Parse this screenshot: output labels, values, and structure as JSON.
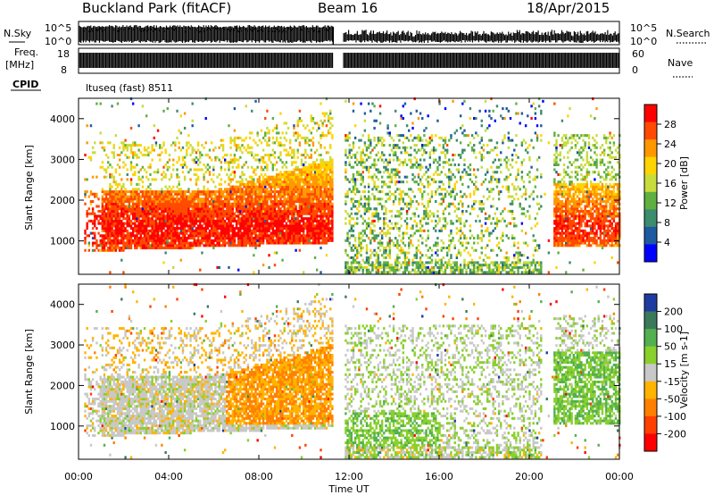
{
  "header": {
    "site": "Buckland Park (fitACF)",
    "beam": "Beam 16",
    "date": "18/Apr/2015"
  },
  "top_panels": {
    "nsky_label": "N.Sky",
    "nsky_ticks": [
      "10^5",
      "10^0"
    ],
    "nsearch_label": "N.Search",
    "nsearch_ticks": [
      "10^5",
      "10^0"
    ],
    "freq_label": "Freq.",
    "freq_unit": "[MHz]",
    "freq_ticks": [
      "18",
      "8"
    ],
    "nave_label": "Nave",
    "nave_ticks": [
      "60",
      "0"
    ],
    "cpid_label": "CPID",
    "cpid_value": "ltuseq (fast) 8511"
  },
  "chart_data": [
    {
      "type": "heatmap",
      "name": "power",
      "ylabel": "Slant Range [km]",
      "yticks": [
        "1000",
        "2000",
        "3000",
        "4000"
      ],
      "ylim": [
        180,
        4500
      ],
      "xlim": [
        0,
        24
      ],
      "data_gap_hours": [
        11.3,
        11.75
      ],
      "colorbar_label": "Power [dB]",
      "colorbar_ticks": [
        "28",
        "24",
        "20",
        "16",
        "12",
        "8",
        "4"
      ],
      "colorbar_colors": [
        "#ff0000",
        "#ff4a00",
        "#ff9800",
        "#ffd400",
        "#c8dc3c",
        "#5fb040",
        "#3c8c6e",
        "#1e5aa0",
        "#0000ff"
      ],
      "colorbar_range": [
        0,
        32
      ],
      "regions": [
        {
          "t0": 0.2,
          "t1": 11.3,
          "r0": 900,
          "r1": 2100,
          "values": "high (20-30 dB)"
        },
        {
          "t0": 21.0,
          "t1": 24.0,
          "r0": 800,
          "r1": 2200,
          "values": "high (18-30 dB)"
        },
        {
          "t0": 11.75,
          "t1": 20.5,
          "r0": 200,
          "r1": 3500,
          "values": "low-medium (4-20 dB)"
        }
      ]
    },
    {
      "type": "heatmap",
      "name": "velocity",
      "ylabel": "Slant Range [km]",
      "yticks": [
        "1000",
        "2000",
        "3000",
        "4000"
      ],
      "ylim": [
        180,
        4500
      ],
      "xlim": [
        0,
        24
      ],
      "data_gap_hours": [
        11.3,
        11.75
      ],
      "colorbar_label": "Velocity [m s-1]",
      "colorbar_ticks": [
        "200",
        "100",
        "50",
        "15",
        "-15",
        "-50",
        "-100",
        "-200"
      ],
      "colorbar_colors": [
        "#1e3ca0",
        "#3a7a5a",
        "#52b050",
        "#8ad02c",
        "#c8c8c8",
        "#ffb400",
        "#ff8000",
        "#ff4000",
        "#ff0000"
      ],
      "colorbar_range": [
        -250,
        250
      ],
      "regions": [
        {
          "t0": 0.2,
          "t1": 6.5,
          "r0": 900,
          "r1": 2000,
          "values": "near zero (ground scatter, grey)"
        },
        {
          "t0": 6.5,
          "t1": 11.3,
          "r0": 1000,
          "r1": 3500,
          "values": "negative (-15 to -50, orange)"
        },
        {
          "t0": 11.75,
          "t1": 16.0,
          "r0": 400,
          "r1": 1300,
          "values": "positive (15-50, green)"
        },
        {
          "t0": 21.0,
          "t1": 23.5,
          "r0": 1200,
          "r1": 2800,
          "values": "positive (15-50, green)"
        }
      ]
    }
  ],
  "x_axis": {
    "ticks": [
      "00:00",
      "04:00",
      "08:00",
      "12:00",
      "16:00",
      "20:00",
      "00:00"
    ],
    "label": "Time UT"
  }
}
